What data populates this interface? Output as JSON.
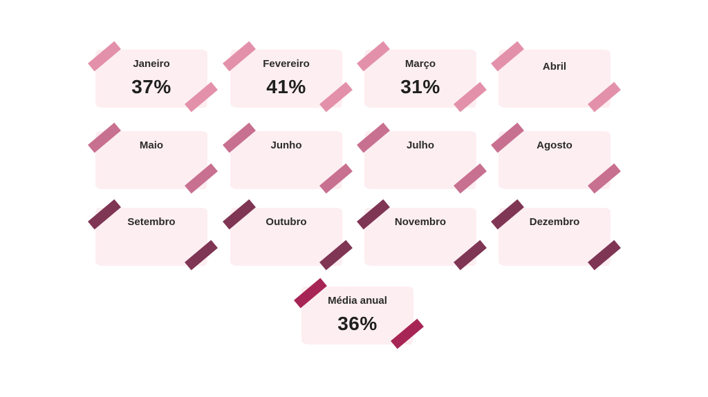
{
  "cards": [
    {
      "month": "Janeiro",
      "value": "37%"
    },
    {
      "month": "Fevereiro",
      "value": "41%"
    },
    {
      "month": "Março",
      "value": "31%"
    },
    {
      "month": "Abril",
      "value": ""
    },
    {
      "month": "Maio",
      "value": ""
    },
    {
      "month": "Junho",
      "value": ""
    },
    {
      "month": "Julho",
      "value": ""
    },
    {
      "month": "Agosto",
      "value": ""
    },
    {
      "month": "Setembro",
      "value": ""
    },
    {
      "month": "Outubro",
      "value": ""
    },
    {
      "month": "Novembro",
      "value": ""
    },
    {
      "month": "Dezembro",
      "value": ""
    }
  ],
  "summary": {
    "label": "Média anual",
    "value": "36%"
  },
  "colors": {
    "paper": "#fdeef1",
    "tape_row1": "#e391ab",
    "tape_row2": "#c87090",
    "tape_row3": "#7f3554",
    "tape_summary": "#a72555"
  }
}
